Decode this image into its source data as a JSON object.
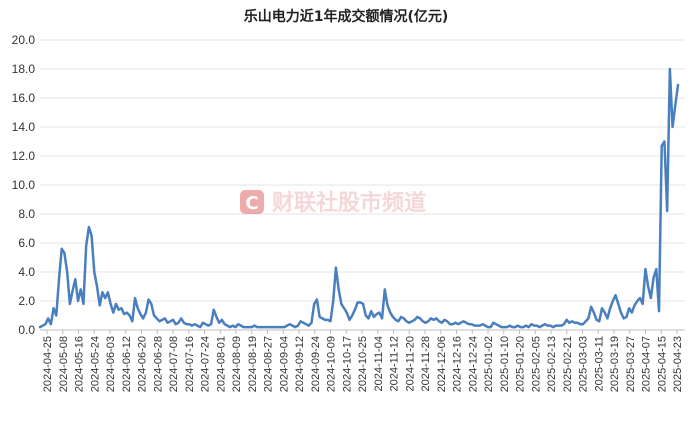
{
  "chart_data": {
    "type": "line",
    "title": "乐山电力近1年成交额情况(亿元)",
    "xlabel": "",
    "ylabel": "",
    "ylim": [
      0,
      20
    ],
    "yticks": [
      "0.0",
      "2.0",
      "4.0",
      "6.0",
      "8.0",
      "10.0",
      "12.0",
      "14.0",
      "16.0",
      "18.0",
      "20.0"
    ],
    "grid": "horizontal",
    "legend": "none",
    "line_color": "#4a7fbf",
    "x_ticks": [
      "2024-04-25",
      "2024-05-08",
      "2024-05-16",
      "2024-05-24",
      "2024-06-03",
      "2024-06-12",
      "2024-06-20",
      "2024-06-28",
      "2024-07-08",
      "2024-07-16",
      "2024-07-24",
      "2024-08-01",
      "2024-08-09",
      "2024-08-19",
      "2024-08-27",
      "2024-09-04",
      "2024-09-12",
      "2024-09-24",
      "2024-10-09",
      "2024-10-17",
      "2024-10-25",
      "2024-11-04",
      "2024-11-12",
      "2024-11-20",
      "2024-11-28",
      "2024-12-06",
      "2024-12-16",
      "2024-12-24",
      "2025-01-02",
      "2025-01-10",
      "2025-01-20",
      "2025-02-05",
      "2025-02-13",
      "2025-02-21",
      "2025-03-03",
      "2025-03-11",
      "2025-03-19",
      "2025-03-27",
      "2025-04-07",
      "2025-04-15",
      "2025-04-23"
    ],
    "values": [
      0.2,
      0.3,
      0.4,
      0.8,
      0.4,
      1.5,
      1.0,
      3.5,
      5.6,
      5.3,
      4.0,
      1.8,
      2.7,
      3.5,
      2.0,
      2.8,
      1.8,
      5.8,
      7.1,
      6.5,
      4.0,
      3.0,
      1.7,
      2.6,
      2.2,
      2.6,
      1.8,
      1.2,
      1.8,
      1.4,
      1.5,
      1.1,
      1.2,
      1.0,
      0.6,
      2.2,
      1.5,
      1.1,
      0.8,
      1.2,
      2.1,
      1.8,
      1.0,
      0.8,
      0.6,
      0.7,
      0.8,
      0.5,
      0.6,
      0.7,
      0.4,
      0.5,
      0.8,
      0.5,
      0.4,
      0.4,
      0.3,
      0.4,
      0.3,
      0.2,
      0.5,
      0.4,
      0.3,
      0.4,
      1.4,
      0.9,
      0.5,
      0.7,
      0.4,
      0.3,
      0.2,
      0.3,
      0.2,
      0.4,
      0.3,
      0.2,
      0.2,
      0.2,
      0.2,
      0.3,
      0.2,
      0.2,
      0.2,
      0.2,
      0.2,
      0.2,
      0.2,
      0.2,
      0.2,
      0.2,
      0.2,
      0.3,
      0.4,
      0.3,
      0.2,
      0.3,
      0.6,
      0.5,
      0.4,
      0.3,
      0.5,
      1.8,
      2.1,
      0.9,
      0.8,
      0.7,
      0.7,
      0.6,
      2.0,
      4.3,
      2.8,
      1.8,
      1.5,
      1.2,
      0.7,
      1.0,
      1.4,
      1.9,
      1.9,
      1.8,
      1.0,
      0.8,
      1.3,
      0.9,
      1.1,
      1.2,
      0.8,
      2.8,
      1.7,
      1.2,
      0.9,
      0.7,
      0.6,
      0.9,
      0.8,
      0.6,
      0.5,
      0.6,
      0.7,
      0.9,
      0.8,
      0.6,
      0.5,
      0.6,
      0.8,
      0.7,
      0.8,
      0.6,
      0.5,
      0.7,
      0.6,
      0.4,
      0.4,
      0.5,
      0.4,
      0.5,
      0.6,
      0.5,
      0.4,
      0.4,
      0.3,
      0.3,
      0.3,
      0.4,
      0.3,
      0.2,
      0.2,
      0.5,
      0.4,
      0.3,
      0.2,
      0.2,
      0.2,
      0.3,
      0.2,
      0.2,
      0.3,
      0.2,
      0.2,
      0.3,
      0.2,
      0.4,
      0.3,
      0.3,
      0.2,
      0.3,
      0.4,
      0.3,
      0.3,
      0.2,
      0.3,
      0.3,
      0.3,
      0.4,
      0.7,
      0.5,
      0.6,
      0.5,
      0.5,
      0.4,
      0.4,
      0.6,
      0.8,
      1.6,
      1.2,
      0.7,
      0.6,
      1.5,
      1.2,
      0.8,
      1.5,
      2.0,
      2.4,
      1.8,
      1.2,
      0.8,
      0.9,
      1.5,
      1.2,
      1.7,
      2.0,
      2.2,
      1.8,
      4.2,
      3.0,
      2.2,
      3.6,
      4.2,
      1.3,
      12.7,
      13.0,
      8.2,
      18.0,
      14.0,
      15.5,
      16.9
    ]
  },
  "watermark": {
    "logo_letter": "C",
    "text": "财联社股市频道",
    "color": "#d94a4a"
  }
}
